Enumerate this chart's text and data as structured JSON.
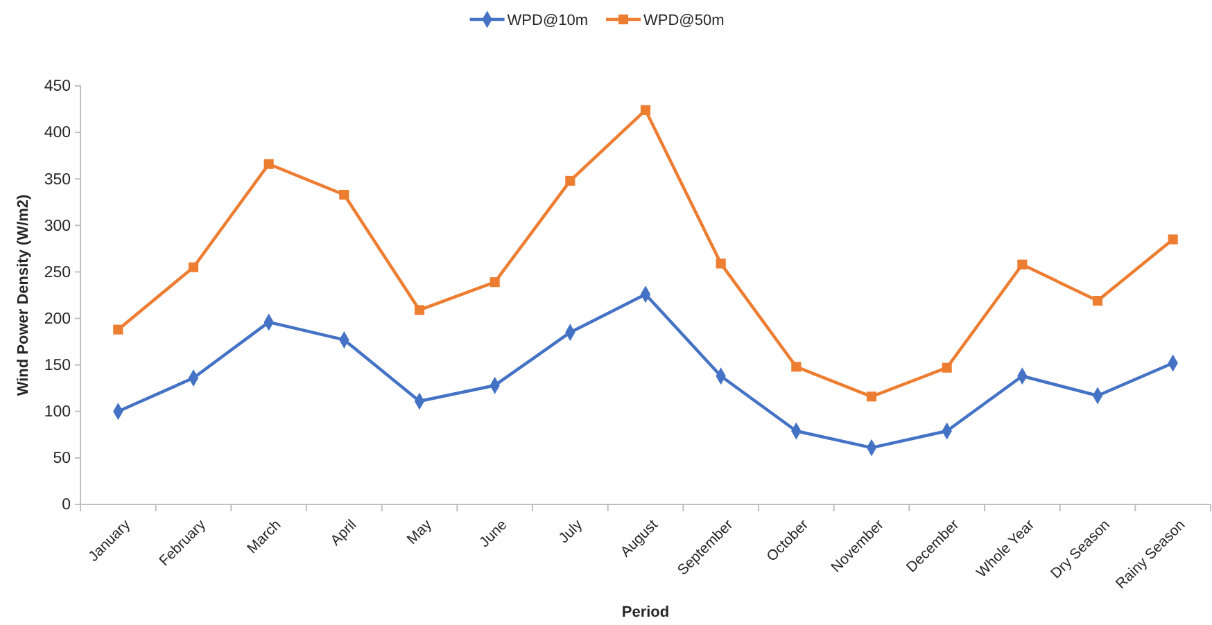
{
  "chart_data": {
    "type": "line",
    "xlabel": "Period",
    "ylabel": "Wind Power Density (W/m2)",
    "categories": [
      "January",
      "February",
      "March",
      "April",
      "May",
      "June",
      "July",
      "August",
      "September",
      "October",
      "November",
      "December",
      "Whole Year",
      "Dry Season",
      "Rainy Season"
    ],
    "series": [
      {
        "name": "WPD@10m",
        "color": "#4472c4",
        "marker": "diamond",
        "values": [
          100,
          136,
          196,
          177,
          111,
          128,
          185,
          226,
          138,
          79,
          61,
          79,
          138,
          117,
          152
        ]
      },
      {
        "name": "WPD@50m",
        "color": "#ed7d31",
        "marker": "square",
        "values": [
          188,
          255,
          366,
          333,
          209,
          239,
          348,
          424,
          259,
          148,
          116,
          147,
          258,
          219,
          285
        ]
      }
    ],
    "ylim": [
      0,
      450
    ],
    "yticks": [
      0,
      50,
      100,
      150,
      200,
      250,
      300,
      350,
      400,
      450
    ],
    "grid": false,
    "legend": "top",
    "line_style": "solid"
  }
}
